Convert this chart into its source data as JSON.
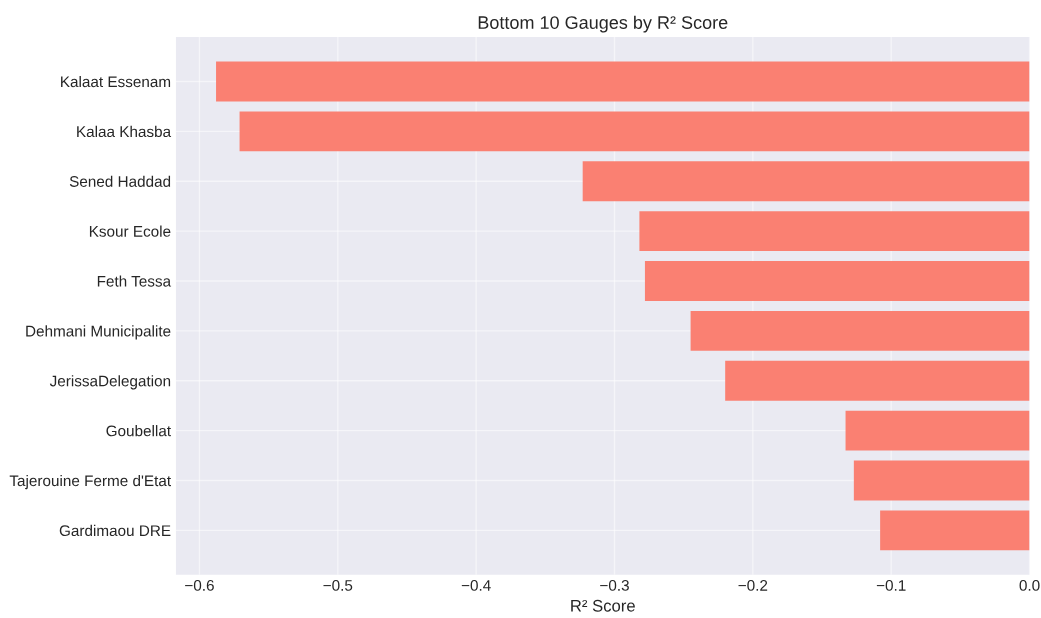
{
  "chart_data": {
    "type": "bar",
    "orientation": "horizontal",
    "title": "Bottom 10 Gauges by R² Score",
    "xlabel": "R² Score",
    "categories": [
      "Kalaat Essenam",
      "Kalaa Khasba",
      "Sened Haddad",
      "Ksour Ecole",
      "Feth Tessa",
      "Dehmani Municipalite",
      "JerissaDelegation",
      "Goubellat",
      "Tajerouine Ferme d'Etat",
      "Gardimaou DRE"
    ],
    "values": [
      -0.588,
      -0.571,
      -0.323,
      -0.282,
      -0.278,
      -0.245,
      -0.22,
      -0.133,
      -0.127,
      -0.108
    ],
    "color": "#fa8072",
    "xlim": [
      -0.617,
      0.0
    ],
    "xticks": [
      {
        "value": -0.6,
        "label": "−0.6"
      },
      {
        "value": -0.5,
        "label": "−0.5"
      },
      {
        "value": -0.4,
        "label": "−0.4"
      },
      {
        "value": -0.3,
        "label": "−0.3"
      },
      {
        "value": -0.2,
        "label": "−0.2"
      },
      {
        "value": -0.1,
        "label": "−0.1"
      },
      {
        "value": 0.0,
        "label": "0.0"
      }
    ],
    "grid": true,
    "legend": false
  }
}
